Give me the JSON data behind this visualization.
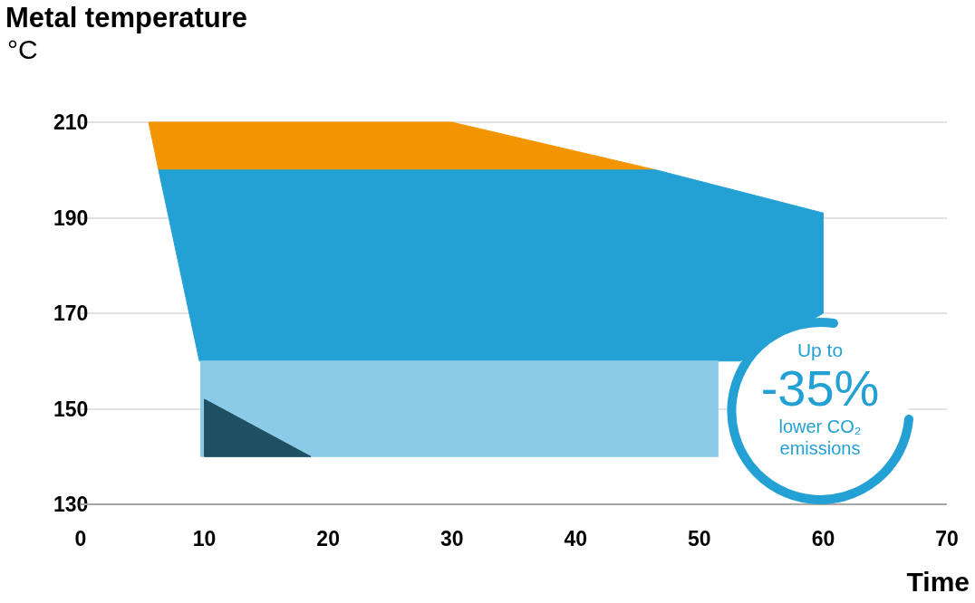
{
  "chart_data": {
    "type": "area",
    "title": "Metal temperature",
    "ylabel": "°C",
    "xlabel": "Time",
    "series": [
      {
        "color": "#f29500",
        "x": [
          5.5,
          30,
          46.5,
          6.3
        ],
        "values": [
          210,
          210,
          200,
          200
        ]
      },
      {
        "color": "#23a0d4",
        "x": [
          6.3,
          46.5,
          60,
          60,
          53.3,
          9.6
        ],
        "values": [
          200,
          200,
          191,
          170,
          160,
          160
        ]
      },
      {
        "color": "#8ccbe8",
        "x": [
          9.7,
          51.5,
          51.5,
          9.7
        ],
        "values": [
          160,
          160,
          140,
          140
        ]
      },
      {
        "color": "#1f4f63",
        "x": [
          10,
          18.6,
          10
        ],
        "values": [
          152,
          140,
          140
        ]
      }
    ],
    "xlim": [
      0,
      70
    ],
    "xticks": [
      0,
      10,
      20,
      30,
      40,
      50,
      60,
      70
    ],
    "ylim": [
      130,
      210
    ],
    "yticks": [
      130,
      150,
      170,
      190,
      210
    ],
    "grid": "y",
    "annotations": [
      "Up to",
      "-35%",
      "lower CO₂ emissions"
    ]
  }
}
